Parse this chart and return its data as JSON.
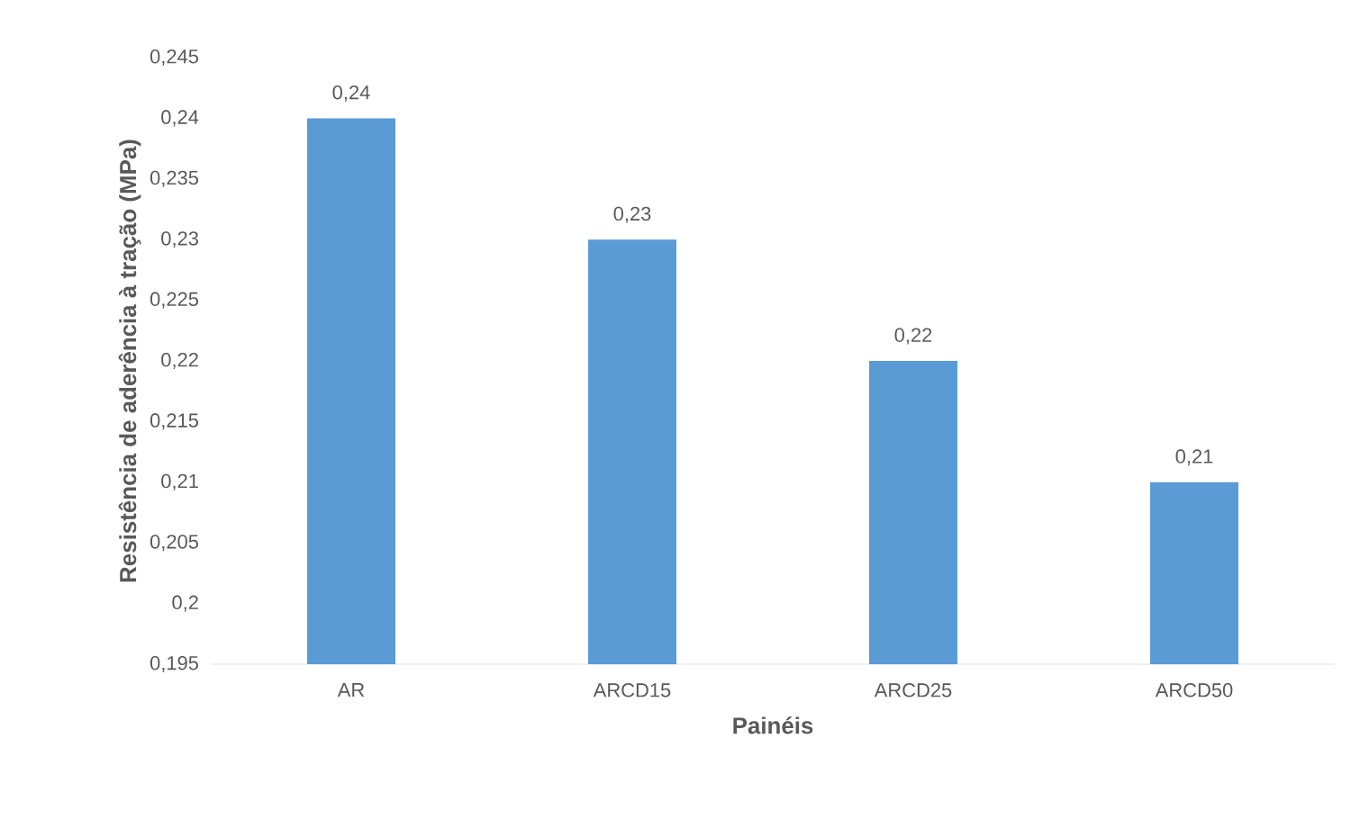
{
  "chart_data": {
    "type": "bar",
    "xlabel": "Painéis",
    "ylabel": "Resistência de aderência à tração (MPa)",
    "categories": [
      "AR",
      "ARCD15",
      "ARCD25",
      "ARCD50"
    ],
    "values": [
      0.24,
      0.23,
      0.22,
      0.21
    ],
    "value_labels": [
      "0,24",
      "0,23",
      "0,22",
      "0,21"
    ],
    "color": "#5b9bd5",
    "ylim": [
      0.195,
      0.245
    ],
    "yticks": [
      {
        "value": 0.195,
        "label": "0,195"
      },
      {
        "value": 0.2,
        "label": "0,2"
      },
      {
        "value": 0.205,
        "label": "0,205"
      },
      {
        "value": 0.21,
        "label": "0,21"
      },
      {
        "value": 0.215,
        "label": "0,215"
      },
      {
        "value": 0.22,
        "label": "0,22"
      },
      {
        "value": 0.225,
        "label": "0,225"
      },
      {
        "value": 0.23,
        "label": "0,23"
      },
      {
        "value": 0.235,
        "label": "0,235"
      },
      {
        "value": 0.24,
        "label": "0,24"
      },
      {
        "value": 0.245,
        "label": "0,245"
      }
    ],
    "grid": false
  }
}
